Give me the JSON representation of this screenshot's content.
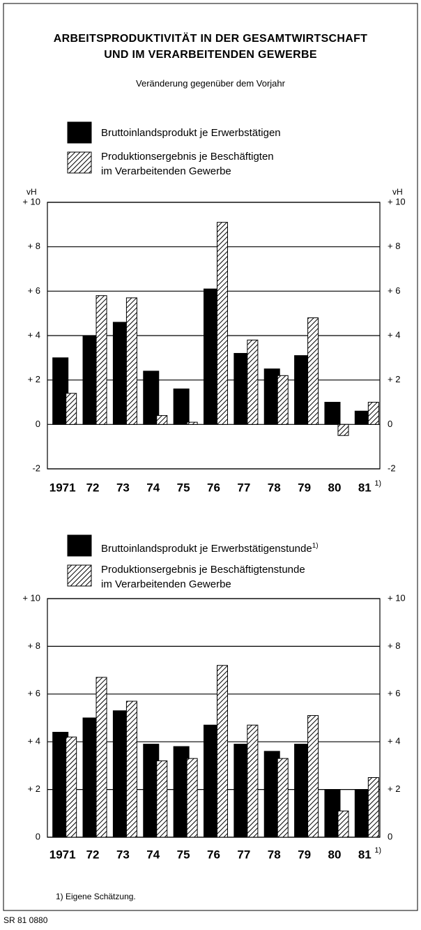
{
  "title": "ARBEITSPRODUKTIVITÄT IN DER GESAMTWIRTSCHAFT\nUND IM VERARBEITENDEN GEWERBE",
  "subtitle": "Veränderung gegenüber dem Vorjahr",
  "footnote": "1) Eigene Schätzung.",
  "source": "SR 81 0880",
  "chart_data": [
    {
      "type": "bar",
      "y_label": "vH",
      "categories": [
        "1971",
        "72",
        "73",
        "74",
        "75",
        "76",
        "77",
        "78",
        "79",
        "80",
        "81"
      ],
      "category_note": "1)",
      "ylim": [
        -2,
        10
      ],
      "yticks": [
        {
          "value": 10,
          "label": "+ 10"
        },
        {
          "value": 8,
          "label": "+ 8"
        },
        {
          "value": 6,
          "label": "+ 6"
        },
        {
          "value": 4,
          "label": "+ 4"
        },
        {
          "value": 2,
          "label": "+ 2"
        },
        0,
        -2
      ],
      "grid": true,
      "series": [
        {
          "name": "Bruttoinlandsprodukt je Erwerbstätigen",
          "color": "#000000",
          "fill": "solid",
          "values": [
            3.0,
            4.0,
            4.6,
            2.4,
            1.6,
            6.1,
            3.2,
            2.5,
            3.1,
            1.0,
            0.6
          ]
        },
        {
          "name": "Produktionsergebnis je Beschäftigten\nim Verarbeitenden Gewerbe",
          "color": "#000000",
          "fill": "hatched",
          "values": [
            1.4,
            5.8,
            5.7,
            0.4,
            0.1,
            9.1,
            3.8,
            2.2,
            4.8,
            -0.5,
            1.0
          ]
        }
      ]
    },
    {
      "type": "bar",
      "categories": [
        "1971",
        "72",
        "73",
        "74",
        "75",
        "76",
        "77",
        "78",
        "79",
        "80",
        "81"
      ],
      "category_note": "1)",
      "ylim": [
        0,
        10
      ],
      "yticks": [
        {
          "value": 10,
          "label": "+ 10"
        },
        {
          "value": 8,
          "label": "+ 8"
        },
        {
          "value": 6,
          "label": "+ 6"
        },
        {
          "value": 4,
          "label": "+ 4"
        },
        {
          "value": 2,
          "label": "+ 2"
        },
        0
      ],
      "grid": true,
      "series": [
        {
          "name": "Bruttoinlandsprodukt je Erwerbstätigenstunde",
          "name_note": "1)",
          "color": "#000000",
          "fill": "solid",
          "values": [
            4.4,
            5.0,
            5.3,
            3.9,
            3.8,
            4.7,
            3.9,
            3.6,
            3.9,
            2.0,
            2.0
          ]
        },
        {
          "name": "Produktionsergebnis je Beschäftigtenstunde\nim Verarbeitenden Gewerbe",
          "color": "#000000",
          "fill": "hatched",
          "values": [
            4.2,
            6.7,
            5.7,
            3.2,
            3.3,
            7.2,
            4.7,
            3.3,
            5.1,
            1.1,
            2.5
          ]
        }
      ]
    }
  ]
}
